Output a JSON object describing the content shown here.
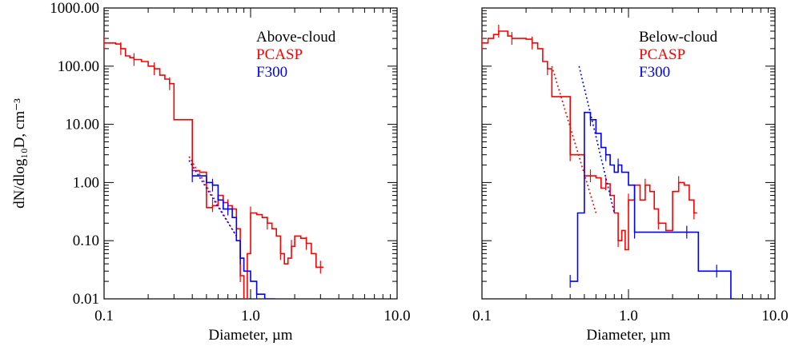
{
  "chart_data": [
    {
      "type": "line",
      "panel": "left",
      "xlabel": "Diameter, µm",
      "ylabel": "dN/dlog₁₀D, cm⁻³",
      "xscale": "log",
      "yscale": "log",
      "xlim": [
        0.1,
        10.0
      ],
      "ylim": [
        0.01,
        1000.0
      ],
      "xticks": [
        "0.1",
        "1.0",
        "10.0"
      ],
      "yticks": [
        "0.01",
        "0.10",
        "1.00",
        "10.00",
        "100.00",
        "1000.00"
      ],
      "legend_position": "top-right",
      "legend": [
        {
          "label": "Above-cloud",
          "color": "#000000"
        },
        {
          "label": "PCASP",
          "color": "#ff0000"
        },
        {
          "label": "F300",
          "color": "#0000ff"
        }
      ],
      "series": [
        {
          "name": "PCASP",
          "color": "#ff0000",
          "style": "step",
          "x": [
            0.1,
            0.11,
            0.12,
            0.13,
            0.14,
            0.15,
            0.16,
            0.18,
            0.2,
            0.22,
            0.24,
            0.26,
            0.28,
            0.3,
            0.35,
            0.4,
            0.45,
            0.5,
            0.55,
            0.6,
            0.65,
            0.7,
            0.75,
            0.8,
            0.85,
            0.9,
            0.95,
            1.0,
            1.1,
            1.2,
            1.3,
            1.4,
            1.5,
            1.6,
            1.7,
            1.8,
            1.9,
            2.0,
            2.2,
            2.4,
            2.6,
            2.8,
            3.0
          ],
          "y": [
            250,
            250,
            240,
            200,
            150,
            140,
            130,
            120,
            100,
            90,
            70,
            60,
            50,
            12,
            12,
            1.6,
            1.5,
            0.37,
            0.4,
            0.6,
            0.45,
            0.4,
            0.35,
            0.16,
            0.025,
            0.005,
            0.06,
            0.3,
            0.28,
            0.25,
            0.2,
            0.16,
            0.12,
            0.06,
            0.04,
            0.05,
            0.08,
            0.12,
            0.11,
            0.09,
            0.06,
            0.035,
            0.035
          ]
        },
        {
          "name": "F300",
          "color": "#0000ff",
          "style": "step",
          "x": [
            0.4,
            0.45,
            0.5,
            0.55,
            0.6,
            0.65,
            0.7,
            0.75,
            0.8,
            0.85,
            0.9,
            1.0,
            1.1,
            1.25,
            1.4
          ],
          "y": [
            1.3,
            1.3,
            1.0,
            0.9,
            0.5,
            0.35,
            0.35,
            0.25,
            0.1,
            0.05,
            0.03,
            0.02,
            0.012,
            0.01,
            0.01
          ]
        },
        {
          "name": "PCASP fit",
          "color": "#ff0000",
          "style": "dotted",
          "x": [
            0.38,
            0.8
          ],
          "y": [
            2.8,
            0.12
          ]
        },
        {
          "name": "F300 fit",
          "color": "#0000ff",
          "style": "dotted",
          "x": [
            0.38,
            0.8
          ],
          "y": [
            2.4,
            0.12
          ]
        }
      ]
    },
    {
      "type": "line",
      "panel": "right",
      "xlabel": "Diameter, µm",
      "ylabel": "",
      "xscale": "log",
      "yscale": "log",
      "xlim": [
        0.1,
        10.0
      ],
      "ylim": [
        0.01,
        1000.0
      ],
      "xticks": [
        "0.1",
        "1.0",
        "10.0"
      ],
      "yticks": [],
      "legend_position": "top-right",
      "legend": [
        {
          "label": "Below-cloud",
          "color": "#000000"
        },
        {
          "label": "PCASP",
          "color": "#ff0000"
        },
        {
          "label": "F300",
          "color": "#0000ff"
        }
      ],
      "series": [
        {
          "name": "PCASP",
          "color": "#ff0000",
          "style": "step",
          "x": [
            0.1,
            0.11,
            0.12,
            0.13,
            0.14,
            0.15,
            0.16,
            0.18,
            0.2,
            0.22,
            0.24,
            0.26,
            0.28,
            0.3,
            0.35,
            0.4,
            0.45,
            0.5,
            0.55,
            0.6,
            0.65,
            0.7,
            0.75,
            0.8,
            0.85,
            0.9,
            0.95,
            1.0,
            1.1,
            1.2,
            1.3,
            1.4,
            1.5,
            1.6,
            1.8,
            2.0,
            2.2,
            2.4,
            2.6,
            2.8
          ],
          "y": [
            250,
            300,
            350,
            400,
            400,
            330,
            300,
            300,
            290,
            250,
            200,
            120,
            90,
            30,
            30,
            3,
            3,
            1.3,
            1.3,
            1.2,
            0.8,
            0.95,
            0.6,
            0.3,
            0.1,
            0.15,
            0.07,
            0.5,
            0.9,
            0.5,
            0.9,
            0.7,
            0.35,
            0.2,
            0.15,
            0.7,
            1.0,
            0.9,
            0.5,
            0.3
          ]
        },
        {
          "name": "F300",
          "color": "#0000ff",
          "style": "step",
          "x": [
            0.4,
            0.45,
            0.5,
            0.55,
            0.6,
            0.65,
            0.7,
            0.75,
            0.8,
            0.85,
            0.9,
            1.0,
            1.1,
            1.5,
            2.0,
            2.5,
            3.0,
            3.5,
            4.0,
            5.0
          ],
          "y": [
            0.02,
            0.3,
            16,
            12,
            7,
            4,
            3,
            2,
            1.5,
            2,
            1.5,
            0.9,
            0.14,
            0.14,
            0.14,
            0.14,
            0.03,
            0.03,
            0.03,
            0.01
          ]
        },
        {
          "name": "PCASP fit",
          "color": "#ff0000",
          "style": "dotted",
          "x": [
            0.3,
            0.6
          ],
          "y": [
            100,
            0.3
          ]
        },
        {
          "name": "F300 fit",
          "color": "#0000ff",
          "style": "dotted",
          "x": [
            0.46,
            0.8
          ],
          "y": [
            100,
            0.3
          ]
        }
      ]
    }
  ]
}
